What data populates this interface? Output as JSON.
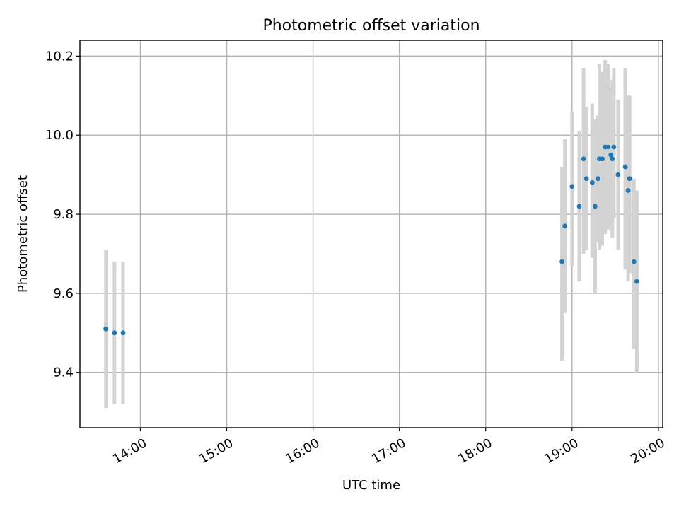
{
  "chart_data": {
    "type": "scatter",
    "title": "Photometric offset variation",
    "xlabel": "UTC time",
    "ylabel": "Photometric offset",
    "x_axis": {
      "kind": "time",
      "range": [
        "13:18",
        "20:03"
      ],
      "ticks": [
        "14:00",
        "15:00",
        "16:00",
        "17:00",
        "18:00",
        "19:00",
        "20:00"
      ]
    },
    "y_axis": {
      "range": [
        9.26,
        10.24
      ],
      "ticks": [
        "9.4",
        "9.6",
        "9.8",
        "10.0",
        "10.2"
      ]
    },
    "grid": true,
    "colors": {
      "points": "#1f77b4",
      "error_bars": "#d3d3d3",
      "grid": "#b0b0b0"
    },
    "series": [
      {
        "points": [
          {
            "x": "13:36",
            "y": 9.51,
            "yerr_low": 9.31,
            "yerr_high": 9.71
          },
          {
            "x": "13:42",
            "y": 9.5,
            "yerr_low": 9.32,
            "yerr_high": 9.68
          },
          {
            "x": "13:48",
            "y": 9.5,
            "yerr_low": 9.32,
            "yerr_high": 9.68
          },
          {
            "x": "18:53",
            "y": 9.68,
            "yerr_low": 9.43,
            "yerr_high": 9.92
          },
          {
            "x": "18:55",
            "y": 9.77,
            "yerr_low": 9.55,
            "yerr_high": 9.99
          },
          {
            "x": "19:00",
            "y": 9.87,
            "yerr_low": 9.67,
            "yerr_high": 10.06
          },
          {
            "x": "19:05",
            "y": 9.82,
            "yerr_low": 9.63,
            "yerr_high": 10.01
          },
          {
            "x": "19:08",
            "y": 9.94,
            "yerr_low": 9.7,
            "yerr_high": 10.17
          },
          {
            "x": "19:10",
            "y": 9.89,
            "yerr_low": 9.71,
            "yerr_high": 10.07
          },
          {
            "x": "19:14",
            "y": 9.88,
            "yerr_low": 9.69,
            "yerr_high": 10.08
          },
          {
            "x": "19:16",
            "y": 9.82,
            "yerr_low": 9.6,
            "yerr_high": 10.04
          },
          {
            "x": "19:18",
            "y": 9.89,
            "yerr_low": 9.73,
            "yerr_high": 10.05
          },
          {
            "x": "19:19",
            "y": 9.94,
            "yerr_low": 9.71,
            "yerr_high": 10.18
          },
          {
            "x": "19:21",
            "y": 9.94,
            "yerr_low": 9.72,
            "yerr_high": 10.16
          },
          {
            "x": "19:23",
            "y": 9.97,
            "yerr_low": 9.75,
            "yerr_high": 10.19
          },
          {
            "x": "19:25",
            "y": 9.97,
            "yerr_low": 9.76,
            "yerr_high": 10.18
          },
          {
            "x": "19:27",
            "y": 9.95,
            "yerr_low": 9.77,
            "yerr_high": 10.12
          },
          {
            "x": "19:28",
            "y": 9.94,
            "yerr_low": 9.74,
            "yerr_high": 10.14
          },
          {
            "x": "19:29",
            "y": 9.97,
            "yerr_low": 9.79,
            "yerr_high": 10.17
          },
          {
            "x": "19:32",
            "y": 9.9,
            "yerr_low": 9.71,
            "yerr_high": 10.09
          },
          {
            "x": "19:37",
            "y": 9.92,
            "yerr_low": 9.66,
            "yerr_high": 10.17
          },
          {
            "x": "19:39",
            "y": 9.86,
            "yerr_low": 9.63,
            "yerr_high": 10.1
          },
          {
            "x": "19:40",
            "y": 9.89,
            "yerr_low": 9.65,
            "yerr_high": 10.1
          },
          {
            "x": "19:43",
            "y": 9.68,
            "yerr_low": 9.46,
            "yerr_high": 9.89
          },
          {
            "x": "19:45",
            "y": 9.63,
            "yerr_low": 9.4,
            "yerr_high": 9.86
          }
        ]
      }
    ]
  }
}
